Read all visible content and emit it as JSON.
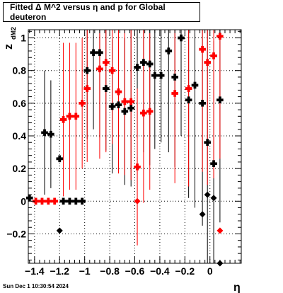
{
  "chart_data": {
    "type": "scatter",
    "title": "Fitted Δ M^2 versus η and p for Global deuteron",
    "xlabel": "η",
    "ylabel": "z",
    "ylabel_sub": "dM2",
    "xlim": [
      -1.45,
      0.25
    ],
    "ylim": [
      -0.38,
      1.05
    ],
    "x_ticks": [
      -1.4,
      -1.2,
      -1.0,
      -0.8,
      -0.6,
      -0.4,
      -0.2,
      0.0
    ],
    "x_tick_labels": [
      "−1.4",
      "−1.2",
      "−1",
      "−0.8",
      "−0.6",
      "−0.4",
      "−0.2",
      "0"
    ],
    "y_ticks": [
      -0.2,
      0.0,
      0.2,
      0.4,
      0.6,
      0.8,
      1.0
    ],
    "y_tick_labels": [
      "−0.2",
      "0",
      "0.2",
      "0.4",
      "0.6",
      "0.8",
      "1"
    ],
    "grid": true,
    "series": [
      {
        "color": "#000000",
        "marker": "square",
        "points": [
          {
            "x": -1.44,
            "y": 0.02,
            "err": 0.0
          },
          {
            "x": -1.32,
            "y": 0.42,
            "err": 0.38
          },
          {
            "x": -1.27,
            "y": 0.41,
            "err": 0.33
          },
          {
            "x": -1.2,
            "y": 0.26,
            "err": 0.0
          },
          {
            "x": -1.17,
            "y": 0.0,
            "err": 0.0
          },
          {
            "x": -1.12,
            "y": 0.0,
            "err": 0.0
          },
          {
            "x": -1.07,
            "y": 0.0,
            "err": 0.0
          },
          {
            "x": -1.02,
            "y": 0.0,
            "err": 0.0
          },
          {
            "x": -0.98,
            "y": 0.8,
            "err": 0.42
          },
          {
            "x": -0.93,
            "y": 0.91,
            "err": 0.47
          },
          {
            "x": -0.88,
            "y": 0.91,
            "err": 0.52
          },
          {
            "x": -0.83,
            "y": 0.69,
            "err": 0.38
          },
          {
            "x": -0.78,
            "y": 0.58,
            "err": 0.41
          },
          {
            "x": -0.73,
            "y": 0.59,
            "err": 0.4
          },
          {
            "x": -0.68,
            "y": 0.55,
            "err": 0.45
          },
          {
            "x": -0.63,
            "y": 0.57,
            "err": 0.48
          },
          {
            "x": -0.58,
            "y": 0.82,
            "err": 0.43
          },
          {
            "x": -0.53,
            "y": 0.85,
            "err": 0.55
          },
          {
            "x": -0.48,
            "y": 0.84,
            "err": 0.62
          },
          {
            "x": -0.44,
            "y": 0.77,
            "err": 0.45
          },
          {
            "x": -0.39,
            "y": 0.77,
            "err": 0.41
          },
          {
            "x": -0.33,
            "y": 0.92,
            "err": 0.62
          },
          {
            "x": -0.28,
            "y": 0.76,
            "err": 0.55
          },
          {
            "x": -0.23,
            "y": 1.0,
            "err": 0.6
          },
          {
            "x": -0.17,
            "y": 0.62,
            "err": 0.6
          },
          {
            "x": -0.12,
            "y": 0.71,
            "err": 0.75
          },
          {
            "x": -0.06,
            "y": 0.6,
            "err": 0.75
          },
          {
            "x": -0.02,
            "y": 0.36,
            "err": 0.75
          },
          {
            "x": 0.03,
            "y": 0.23,
            "err": 0.75
          },
          {
            "x": 0.08,
            "y": 0.62,
            "err": 0.75
          }
        ]
      },
      {
        "color": "#000000",
        "marker": "diamond",
        "points": [
          {
            "x": -1.2,
            "y": -0.18,
            "err": 0.0
          },
          {
            "x": -0.06,
            "y": -0.08,
            "err": 0.0
          },
          {
            "x": -0.02,
            "y": 0.04,
            "err": 0.0
          },
          {
            "x": 0.03,
            "y": 0.02,
            "err": 0.0
          },
          {
            "x": 0.08,
            "y": -0.38,
            "err": 0.0
          }
        ]
      },
      {
        "color": "#ff0000",
        "marker": "square",
        "points": [
          {
            "x": -1.39,
            "y": 0.0,
            "err": 0.0
          },
          {
            "x": -1.34,
            "y": 0.0,
            "err": 0.0
          },
          {
            "x": -1.29,
            "y": 0.0,
            "err": 0.0
          },
          {
            "x": -1.24,
            "y": 0.0,
            "err": 0.0
          },
          {
            "x": -1.17,
            "y": 0.5,
            "err": 0.47
          },
          {
            "x": -1.12,
            "y": 0.52,
            "err": 0.45
          },
          {
            "x": -1.07,
            "y": 0.52,
            "err": 0.45
          },
          {
            "x": -1.02,
            "y": 0.6,
            "err": 0.4
          },
          {
            "x": -0.98,
            "y": 0.69,
            "err": 0.45
          },
          {
            "x": -0.88,
            "y": 0.81,
            "err": 0.55
          },
          {
            "x": -0.83,
            "y": 0.85,
            "err": 0.55
          },
          {
            "x": -0.78,
            "y": 0.8,
            "err": 0.45
          },
          {
            "x": -0.73,
            "y": 0.67,
            "err": 0.5
          },
          {
            "x": -0.68,
            "y": 0.61,
            "err": 0.45
          },
          {
            "x": -0.63,
            "y": 0.61,
            "err": 0.48
          },
          {
            "x": -0.58,
            "y": 0.21,
            "err": 0.48
          },
          {
            "x": -0.53,
            "y": 0.54,
            "err": 0.55
          },
          {
            "x": -0.48,
            "y": 0.55,
            "err": 0.48
          },
          {
            "x": -0.28,
            "y": 0.66,
            "err": 0.55
          },
          {
            "x": -0.17,
            "y": 0.69,
            "err": 0.6
          },
          {
            "x": -0.06,
            "y": 0.93,
            "err": 0.75
          },
          {
            "x": -0.02,
            "y": 0.85,
            "err": 0.75
          },
          {
            "x": 0.03,
            "y": 0.89,
            "err": 0.75
          },
          {
            "x": 0.08,
            "y": 1.01,
            "err": 0.75
          }
        ]
      },
      {
        "color": "#ff0000",
        "marker": "diamond",
        "points": [
          {
            "x": -0.58,
            "y": 0.0,
            "err": 0.27
          },
          {
            "x": 0.08,
            "y": -0.18,
            "err": 0.0
          }
        ]
      }
    ]
  },
  "footer": {
    "timestamp": "Sun Dec  1 10:30:54 2024"
  }
}
